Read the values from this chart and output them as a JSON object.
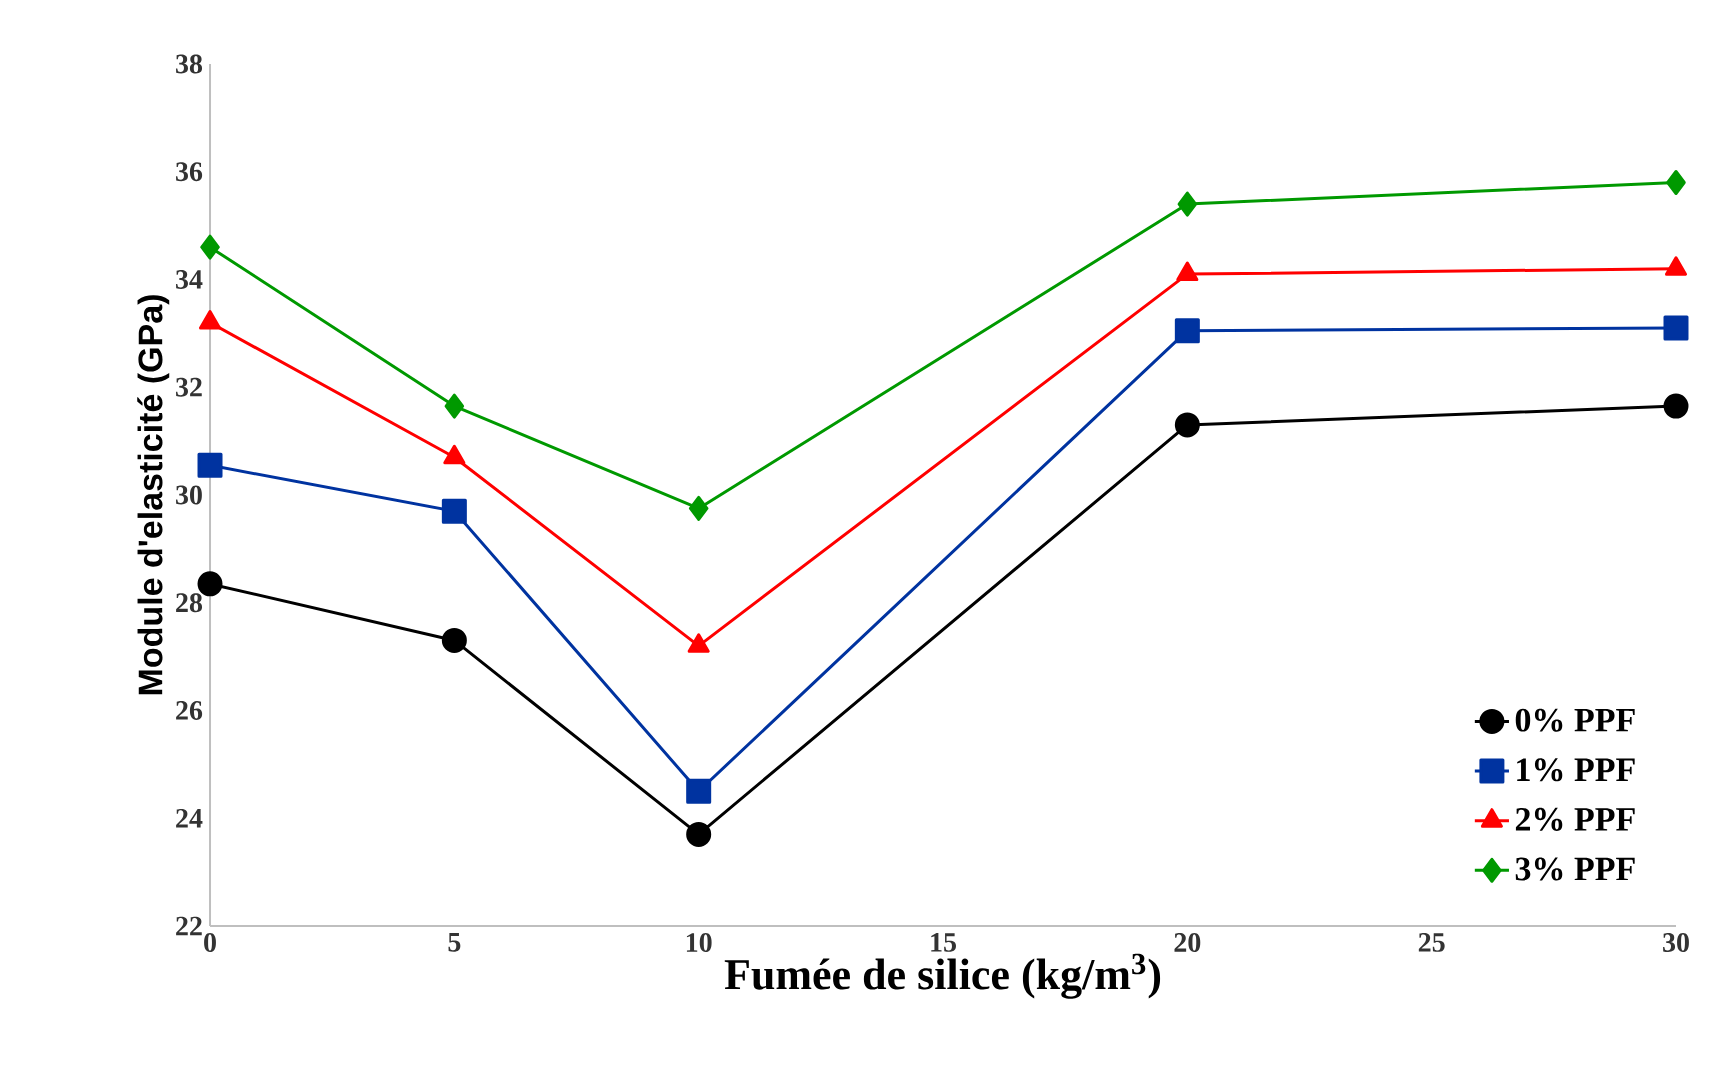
{
  "chart_data": {
    "type": "line",
    "xlabel": "Fumée de silice (kg/m$^{3}$)",
    "ylabel": "Module d'elasticité (GPa)",
    "x": [
      0,
      5,
      10,
      20,
      30
    ],
    "xlim": [
      0,
      30
    ],
    "xticks": [
      0,
      5,
      10,
      15,
      20,
      25,
      30
    ],
    "ylim": [
      22,
      38
    ],
    "yticks": [
      22,
      24,
      26,
      28,
      30,
      32,
      34,
      36,
      38
    ],
    "grid": false,
    "legend": "bottom right",
    "line_style": "solid",
    "series": [
      {
        "name": "0% PPF",
        "color": "#000000",
        "marker": "circle",
        "values": [
          28.35,
          27.3,
          23.7,
          31.3,
          31.65
        ]
      },
      {
        "name": "1% PPF",
        "color": "#0033a0",
        "marker": "square",
        "values": [
          30.55,
          29.7,
          24.5,
          33.05,
          33.1
        ]
      },
      {
        "name": "2% PPF",
        "color": "#ff0000",
        "marker": "triangle",
        "values": [
          33.2,
          30.7,
          27.2,
          34.1,
          34.2
        ]
      },
      {
        "name": "3% PPF",
        "color": "#009900",
        "marker": "diamond",
        "values": [
          34.6,
          31.65,
          29.75,
          35.4,
          35.8
        ]
      }
    ]
  }
}
